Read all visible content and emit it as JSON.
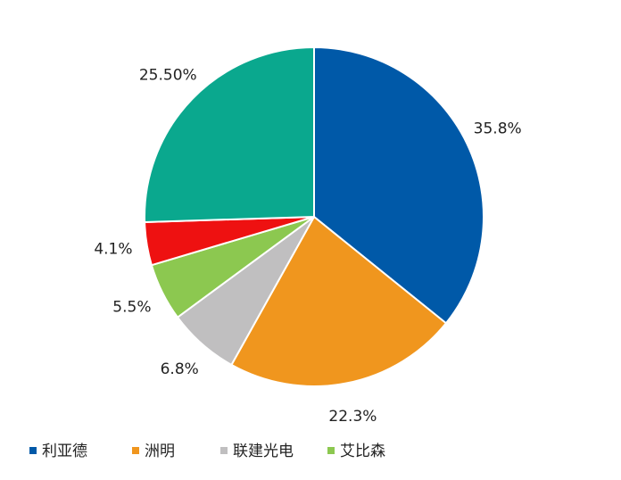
{
  "chart_data": {
    "type": "pie",
    "categories": [
      "利亚德",
      "洲明",
      "联建光电",
      "艾比森",
      null,
      null
    ],
    "values": [
      35.8,
      22.3,
      6.8,
      5.5,
      4.1,
      25.5
    ],
    "value_labels": [
      "35.8%",
      "22.3%",
      "6.8%",
      "5.5%",
      "4.1%",
      "25.50%"
    ],
    "colors": [
      "#0059a8",
      "#f0961e",
      "#c0bfc0",
      "#8cc850",
      "#ee1111",
      "#0aa88e"
    ],
    "legend": "bottom"
  }
}
